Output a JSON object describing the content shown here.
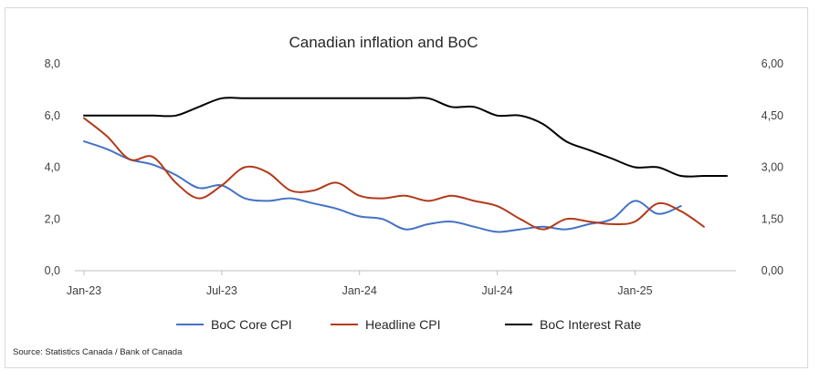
{
  "chart_data": {
    "type": "line",
    "title": "Canadian inflation and BoC",
    "xlabel": "",
    "ylabel": "",
    "y_left_lim": [
      0,
      8
    ],
    "y_right_lim": [
      0,
      6
    ],
    "y_left_ticks": [
      "0,0",
      "2,0",
      "4,0",
      "6,0",
      "8,0"
    ],
    "y_right_ticks": [
      "0,00",
      "1,50",
      "3,00",
      "4,50",
      "6,00"
    ],
    "x_ticks": [
      "Jan-23",
      "Jul-23",
      "Jan-24",
      "Jul-24",
      "Jan-25"
    ],
    "x": [
      "Jan-23",
      "Feb-23",
      "Mar-23",
      "Apr-23",
      "May-23",
      "Jun-23",
      "Jul-23",
      "Aug-23",
      "Sep-23",
      "Oct-23",
      "Nov-23",
      "Dec-23",
      "Jan-24",
      "Feb-24",
      "Mar-24",
      "Apr-24",
      "May-24",
      "Jun-24",
      "Jul-24",
      "Aug-24",
      "Sep-24",
      "Oct-24",
      "Nov-24",
      "Dec-24",
      "Jan-25",
      "Feb-25",
      "Mar-25",
      "Apr-25",
      "May-25"
    ],
    "series": [
      {
        "name": "BoC Core CPI",
        "axis": "left",
        "color": "#4472c4",
        "values": [
          5.0,
          4.7,
          4.3,
          4.1,
          3.7,
          3.2,
          3.3,
          2.8,
          2.7,
          2.8,
          2.6,
          2.4,
          2.1,
          2.0,
          1.6,
          1.8,
          1.9,
          1.7,
          1.5,
          1.6,
          1.7,
          1.6,
          1.8,
          2.0,
          2.7,
          2.2,
          2.5,
          null,
          null
        ]
      },
      {
        "name": "Headline CPI",
        "axis": "left",
        "color": "#b23a1a",
        "values": [
          5.9,
          5.2,
          4.3,
          4.4,
          3.4,
          2.8,
          3.3,
          4.0,
          3.8,
          3.1,
          3.1,
          3.4,
          2.9,
          2.8,
          2.9,
          2.7,
          2.9,
          2.7,
          2.5,
          2.0,
          1.6,
          2.0,
          1.9,
          1.8,
          1.9,
          2.6,
          2.3,
          1.7,
          null
        ]
      },
      {
        "name": "BoC Interest Rate",
        "axis": "right",
        "color": "#000000",
        "values": [
          4.5,
          4.5,
          4.5,
          4.5,
          4.5,
          4.75,
          5.0,
          5.0,
          5.0,
          5.0,
          5.0,
          5.0,
          5.0,
          5.0,
          5.0,
          5.0,
          4.75,
          4.75,
          4.5,
          4.5,
          4.25,
          3.75,
          3.5,
          3.25,
          3.0,
          3.0,
          2.75,
          2.75,
          2.75
        ]
      }
    ],
    "legend_position": "bottom",
    "grid": false,
    "source": "Source: Statistics Canada / Bank of Canada"
  }
}
